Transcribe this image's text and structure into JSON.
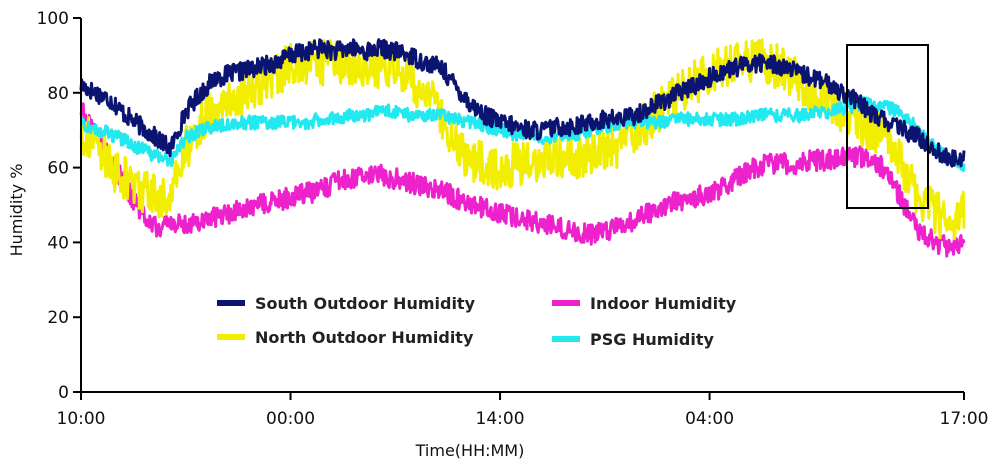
{
  "chart_data": {
    "type": "line",
    "xlabel": "Time(HH:MM)",
    "ylabel": "Humidity %",
    "ylim": [
      0,
      100
    ],
    "y_ticks": [
      "0",
      "20",
      "40",
      "60",
      "80",
      "100"
    ],
    "x_ticks": [
      {
        "label": "10:00",
        "x": 0
      },
      {
        "label": "00:00",
        "x": 14
      },
      {
        "label": "14:00",
        "x": 28
      },
      {
        "label": "04:00",
        "x": 42
      },
      {
        "label": "17:00",
        "x": 59
      }
    ],
    "xlim": [
      0,
      59
    ],
    "grid": false,
    "legend_placement": "lower-center",
    "annotation": "rectangle highlighting the drop around hours 51-57",
    "series": [
      {
        "name": "South Outdoor Humidity",
        "color": "#0b1470",
        "noise": 2.5,
        "points": [
          [
            0,
            82
          ],
          [
            1,
            80
          ],
          [
            2,
            78
          ],
          [
            3,
            74
          ],
          [
            4,
            71
          ],
          [
            5,
            68
          ],
          [
            6,
            65
          ],
          [
            7,
            75
          ],
          [
            8,
            80
          ],
          [
            9,
            84
          ],
          [
            10,
            85
          ],
          [
            11,
            86
          ],
          [
            12,
            87
          ],
          [
            13,
            88
          ],
          [
            14,
            90
          ],
          [
            15,
            91
          ],
          [
            16,
            92
          ],
          [
            17,
            91
          ],
          [
            18,
            92
          ],
          [
            19,
            91
          ],
          [
            20,
            92
          ],
          [
            21,
            91
          ],
          [
            22,
            90
          ],
          [
            23,
            88
          ],
          [
            24,
            87
          ],
          [
            25,
            82
          ],
          [
            26,
            77
          ],
          [
            27,
            74
          ],
          [
            28,
            72
          ],
          [
            29,
            71
          ],
          [
            30,
            70
          ],
          [
            31,
            70
          ],
          [
            32,
            71
          ],
          [
            33,
            71
          ],
          [
            34,
            72
          ],
          [
            35,
            73
          ],
          [
            36,
            73
          ],
          [
            37,
            74
          ],
          [
            38,
            76
          ],
          [
            39,
            78
          ],
          [
            40,
            80
          ],
          [
            41,
            82
          ],
          [
            42,
            84
          ],
          [
            43,
            86
          ],
          [
            44,
            87
          ],
          [
            45,
            88
          ],
          [
            46,
            88
          ],
          [
            47,
            87
          ],
          [
            48,
            85
          ],
          [
            49,
            84
          ],
          [
            50,
            82
          ],
          [
            51,
            80
          ],
          [
            52,
            77
          ],
          [
            53,
            74
          ],
          [
            54,
            72
          ],
          [
            55,
            70
          ],
          [
            56,
            68
          ],
          [
            57,
            65
          ],
          [
            58,
            62
          ],
          [
            59,
            63
          ]
        ]
      },
      {
        "name": "North Outdoor Humidity",
        "color": "#f2ee00",
        "noise": 6,
        "points": [
          [
            0,
            70
          ],
          [
            1,
            66
          ],
          [
            2,
            60
          ],
          [
            3,
            57
          ],
          [
            4,
            54
          ],
          [
            5,
            52
          ],
          [
            6,
            52
          ],
          [
            7,
            65
          ],
          [
            8,
            72
          ],
          [
            9,
            76
          ],
          [
            10,
            78
          ],
          [
            11,
            80
          ],
          [
            12,
            82
          ],
          [
            13,
            85
          ],
          [
            14,
            87
          ],
          [
            15,
            88
          ],
          [
            16,
            88
          ],
          [
            17,
            88
          ],
          [
            18,
            88
          ],
          [
            19,
            88
          ],
          [
            20,
            87
          ],
          [
            21,
            86
          ],
          [
            22,
            84
          ],
          [
            23,
            80
          ],
          [
            24,
            74
          ],
          [
            25,
            66
          ],
          [
            26,
            62
          ],
          [
            27,
            61
          ],
          [
            28,
            60
          ],
          [
            29,
            61
          ],
          [
            30,
            62
          ],
          [
            31,
            62
          ],
          [
            32,
            63
          ],
          [
            33,
            63
          ],
          [
            34,
            63
          ],
          [
            35,
            64
          ],
          [
            36,
            66
          ],
          [
            37,
            69
          ],
          [
            38,
            73
          ],
          [
            39,
            77
          ],
          [
            40,
            80
          ],
          [
            41,
            83
          ],
          [
            42,
            85
          ],
          [
            43,
            87
          ],
          [
            44,
            88
          ],
          [
            45,
            89
          ],
          [
            46,
            88
          ],
          [
            47,
            86
          ],
          [
            48,
            83
          ],
          [
            49,
            80
          ],
          [
            50,
            78
          ],
          [
            51,
            75
          ],
          [
            52,
            72
          ],
          [
            53,
            70
          ],
          [
            54,
            68
          ],
          [
            55,
            60
          ],
          [
            56,
            52
          ],
          [
            57,
            48
          ],
          [
            58,
            46
          ],
          [
            59,
            48
          ]
        ]
      },
      {
        "name": "Indoor Humidity",
        "color": "#ee22cc",
        "noise": 2.8,
        "points": [
          [
            0,
            75
          ],
          [
            1,
            70
          ],
          [
            2,
            62
          ],
          [
            3,
            55
          ],
          [
            4,
            48
          ],
          [
            5,
            44
          ],
          [
            6,
            45
          ],
          [
            7,
            45
          ],
          [
            8,
            46
          ],
          [
            9,
            47
          ],
          [
            10,
            48
          ],
          [
            11,
            49
          ],
          [
            12,
            50
          ],
          [
            13,
            51
          ],
          [
            14,
            52
          ],
          [
            15,
            53
          ],
          [
            16,
            54
          ],
          [
            17,
            56
          ],
          [
            18,
            57
          ],
          [
            19,
            58
          ],
          [
            20,
            58
          ],
          [
            21,
            57
          ],
          [
            22,
            56
          ],
          [
            23,
            55
          ],
          [
            24,
            54
          ],
          [
            25,
            52
          ],
          [
            26,
            50
          ],
          [
            27,
            49
          ],
          [
            28,
            48
          ],
          [
            29,
            47
          ],
          [
            30,
            46
          ],
          [
            31,
            45
          ],
          [
            32,
            44
          ],
          [
            33,
            43
          ],
          [
            34,
            42
          ],
          [
            35,
            43
          ],
          [
            36,
            44
          ],
          [
            37,
            46
          ],
          [
            38,
            48
          ],
          [
            39,
            50
          ],
          [
            40,
            51
          ],
          [
            41,
            52
          ],
          [
            42,
            53
          ],
          [
            43,
            55
          ],
          [
            44,
            58
          ],
          [
            45,
            60
          ],
          [
            46,
            61
          ],
          [
            47,
            61
          ],
          [
            48,
            61
          ],
          [
            49,
            62
          ],
          [
            50,
            62
          ],
          [
            51,
            63
          ],
          [
            52,
            63
          ],
          [
            53,
            62
          ],
          [
            54,
            58
          ],
          [
            55,
            50
          ],
          [
            56,
            43
          ],
          [
            57,
            40
          ],
          [
            58,
            39
          ],
          [
            59,
            40
          ]
        ]
      },
      {
        "name": "PSG Humidity",
        "color": "#22e8f0",
        "noise": 1.8,
        "points": [
          [
            0,
            72
          ],
          [
            1,
            70
          ],
          [
            2,
            69
          ],
          [
            3,
            67
          ],
          [
            4,
            65
          ],
          [
            5,
            63
          ],
          [
            6,
            62
          ],
          [
            7,
            68
          ],
          [
            8,
            70
          ],
          [
            9,
            71
          ],
          [
            10,
            72
          ],
          [
            11,
            72
          ],
          [
            12,
            72
          ],
          [
            13,
            72
          ],
          [
            14,
            72
          ],
          [
            15,
            72
          ],
          [
            16,
            73
          ],
          [
            17,
            73
          ],
          [
            18,
            74
          ],
          [
            19,
            74
          ],
          [
            20,
            75
          ],
          [
            21,
            75
          ],
          [
            22,
            74
          ],
          [
            23,
            74
          ],
          [
            24,
            74
          ],
          [
            25,
            73
          ],
          [
            26,
            72
          ],
          [
            27,
            71
          ],
          [
            28,
            70
          ],
          [
            29,
            69
          ],
          [
            30,
            69
          ],
          [
            31,
            68
          ],
          [
            32,
            69
          ],
          [
            33,
            69
          ],
          [
            34,
            70
          ],
          [
            35,
            71
          ],
          [
            36,
            71
          ],
          [
            37,
            72
          ],
          [
            38,
            72
          ],
          [
            39,
            72
          ],
          [
            40,
            73
          ],
          [
            41,
            73
          ],
          [
            42,
            73
          ],
          [
            43,
            73
          ],
          [
            44,
            73
          ],
          [
            45,
            74
          ],
          [
            46,
            74
          ],
          [
            47,
            74
          ],
          [
            48,
            74
          ],
          [
            49,
            75
          ],
          [
            50,
            75
          ],
          [
            51,
            76
          ],
          [
            52,
            77
          ],
          [
            53,
            77
          ],
          [
            54,
            76
          ],
          [
            55,
            74
          ],
          [
            56,
            70
          ],
          [
            57,
            66
          ],
          [
            58,
            62
          ],
          [
            59,
            60
          ]
        ]
      }
    ]
  }
}
